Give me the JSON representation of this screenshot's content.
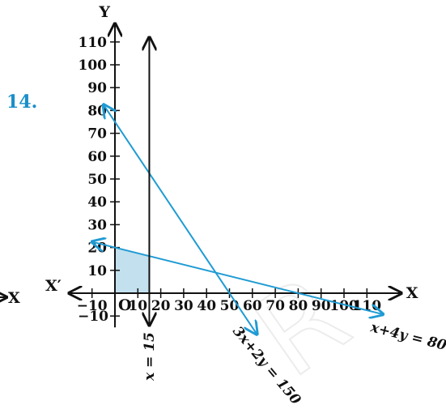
{
  "problem_number": "14.",
  "colors": {
    "axis": "#111111",
    "line": "#1f9bd3",
    "feasible_fill": "#c3e0ee",
    "problem_number": "#1a8fc9"
  },
  "chart_data": {
    "type": "line",
    "title": "",
    "x_axis": {
      "name_pos": "X",
      "name_neg": "X′",
      "range": [
        -20,
        125
      ],
      "ticks": [
        -10,
        10,
        20,
        30,
        40,
        50,
        60,
        70,
        80,
        90,
        100,
        110
      ],
      "tick_labels": [
        "−10",
        "10",
        "20",
        "30",
        "40",
        "50",
        "60",
        "70",
        "80",
        "90",
        "100",
        "110"
      ]
    },
    "y_axis": {
      "name_pos": "Y",
      "range": [
        -15,
        118
      ],
      "ticks": [
        -10,
        10,
        20,
        30,
        40,
        50,
        60,
        70,
        80,
        90,
        100,
        110
      ],
      "tick_labels": [
        "−10",
        "10",
        "20",
        "30",
        "40",
        "50",
        "60",
        "70",
        "80",
        "90",
        "100",
        "110"
      ]
    },
    "origin_label": "O",
    "series": [
      {
        "name": "3x + 2y = 150",
        "label": "3x+2y = 150",
        "points": [
          [
            -5,
            82.5
          ],
          [
            62,
            -18
          ]
        ]
      },
      {
        "name": "x + 4y = 80",
        "label": "x+4y = 80",
        "points": [
          [
            -10,
            22.5
          ],
          [
            117,
            -9.25
          ]
        ]
      },
      {
        "name": "x = 15",
        "label": "x = 15",
        "points": [
          [
            15,
            -14
          ],
          [
            15,
            112
          ]
        ]
      }
    ],
    "feasible_region": [
      [
        0,
        0
      ],
      [
        15,
        0
      ],
      [
        15,
        16.25
      ],
      [
        0,
        20
      ]
    ],
    "grid": false
  }
}
